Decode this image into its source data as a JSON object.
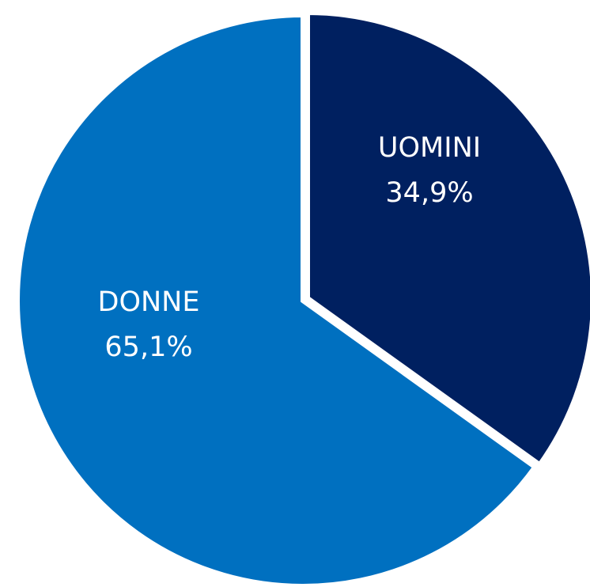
{
  "chart_data": {
    "type": "pie",
    "categories": [
      "UOMINI",
      "DONNE"
    ],
    "values": [
      34.9,
      65.1
    ],
    "value_labels": [
      "34,9%",
      "65,1%"
    ],
    "colors": [
      "#002060",
      "#0070c0"
    ],
    "start_angle": 0,
    "direction": "clockwise"
  }
}
